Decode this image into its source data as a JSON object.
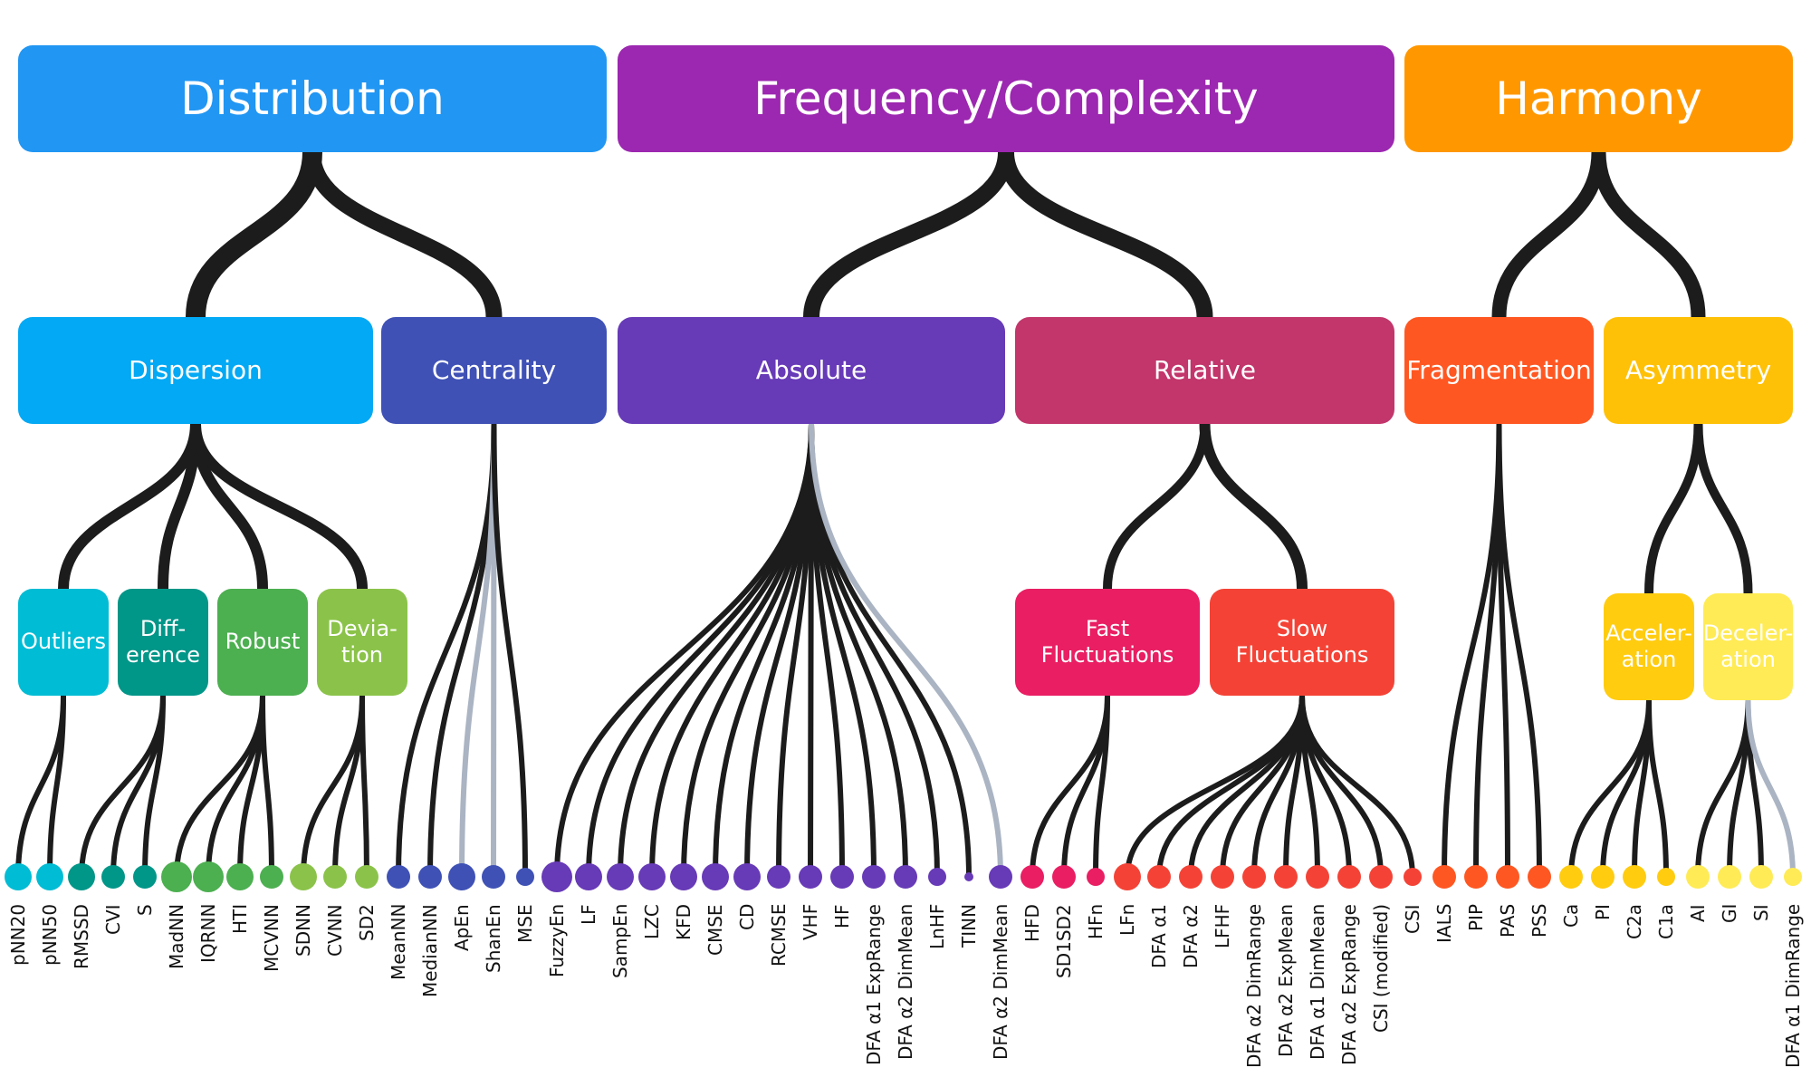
{
  "diagram": {
    "categories": [
      {
        "id": "distribution",
        "label": "Distribution",
        "color": "#2196F3"
      },
      {
        "id": "frequency",
        "label": "Frequency/Complexity",
        "color": "#9C27B0"
      },
      {
        "id": "harmony",
        "label": "Harmony",
        "color": "#FF9800"
      }
    ],
    "subcategories": [
      {
        "id": "dispersion",
        "label": "Dispersion",
        "color": "#03A9F4"
      },
      {
        "id": "centrality",
        "label": "Centrality",
        "color": "#3F51B5"
      },
      {
        "id": "absolute",
        "label": "Absolute",
        "color": "#673AB7"
      },
      {
        "id": "relative",
        "label": "Relative",
        "color": "#C2366B"
      },
      {
        "id": "fragmentation",
        "label": "Fragmentation",
        "color": "#FF5722"
      },
      {
        "id": "asymmetry",
        "label": "Asymmetry",
        "color": "#FFC107"
      }
    ],
    "groups": [
      {
        "id": "outliers",
        "label": "Outliers",
        "color": "#00BCD4"
      },
      {
        "id": "difference",
        "label": "Diff-\nerence",
        "color": "#009688"
      },
      {
        "id": "robust",
        "label": "Robust",
        "color": "#4CAF50"
      },
      {
        "id": "deviation",
        "label": "Devia-\ntion",
        "color": "#8BC34A"
      },
      {
        "id": "fast",
        "label": "Fast\nFluctuations",
        "color": "#E91E63"
      },
      {
        "id": "slow",
        "label": "Slow\nFluctuations",
        "color": "#F44336"
      },
      {
        "id": "acceleration",
        "label": "Acceler-\nation",
        "color": "#FFCC10"
      },
      {
        "id": "deceleration",
        "label": "Deceler-\nation",
        "color": "#FFEB55"
      }
    ],
    "indices": [
      {
        "label": "pNN20",
        "color": "#00BCD4",
        "size": 3
      },
      {
        "label": "pNN50",
        "color": "#00BCD4",
        "size": 3
      },
      {
        "label": "RMSSD",
        "color": "#009688",
        "size": 3
      },
      {
        "label": "CVI",
        "color": "#009688",
        "size": 2
      },
      {
        "label": "S",
        "color": "#009688",
        "size": 2
      },
      {
        "label": "MadNN",
        "color": "#4CAF50",
        "size": 4
      },
      {
        "label": "IQRNN",
        "color": "#4CAF50",
        "size": 4
      },
      {
        "label": "HTI",
        "color": "#4CAF50",
        "size": 3
      },
      {
        "label": "MCVNN",
        "color": "#4CAF50",
        "size": 2
      },
      {
        "label": "SDNN",
        "color": "#8BC34A",
        "size": 3
      },
      {
        "label": "CVNN",
        "color": "#8BC34A",
        "size": 2
      },
      {
        "label": "SD2",
        "color": "#8BC34A",
        "size": 2
      },
      {
        "label": "MeanNN",
        "color": "#3F51B5",
        "size": 2
      },
      {
        "label": "MedianNN",
        "color": "#3F51B5",
        "size": 2
      },
      {
        "label": "ApEn",
        "color": "#3F51B5",
        "size": 3
      },
      {
        "label": "ShanEn",
        "color": "#3F51B5",
        "size": 2
      },
      {
        "label": "MSE",
        "color": "#3F51B5",
        "size": 1
      },
      {
        "label": "FuzzyEn",
        "color": "#673AB7",
        "size": 4
      },
      {
        "label": "LF",
        "color": "#673AB7",
        "size": 3
      },
      {
        "label": "SampEn",
        "color": "#673AB7",
        "size": 3
      },
      {
        "label": "LZC",
        "color": "#673AB7",
        "size": 3
      },
      {
        "label": "KFD",
        "color": "#673AB7",
        "size": 3
      },
      {
        "label": "CMSE",
        "color": "#673AB7",
        "size": 3
      },
      {
        "label": "CD",
        "color": "#673AB7",
        "size": 3
      },
      {
        "label": "RCMSE",
        "color": "#673AB7",
        "size": 2
      },
      {
        "label": "VHF",
        "color": "#673AB7",
        "size": 2
      },
      {
        "label": "HF",
        "color": "#673AB7",
        "size": 2
      },
      {
        "label": "DFA α1 ExpRange",
        "color": "#673AB7",
        "size": 2
      },
      {
        "label": "DFA α2 DimMean",
        "color": "#673AB7",
        "size": 2
      },
      {
        "label": "LnHF",
        "color": "#673AB7",
        "size": 1
      },
      {
        "label": "TINN",
        "color": "#673AB7",
        "size": 0
      },
      {
        "label": "DFA α2 DimMean",
        "color": "#673AB7",
        "size": 2
      },
      {
        "label": "HFD",
        "color": "#E91E63",
        "size": 2
      },
      {
        "label": "SD1SD2",
        "color": "#E91E63",
        "size": 2
      },
      {
        "label": "HFn",
        "color": "#E91E63",
        "size": 1
      },
      {
        "label": "LFn",
        "color": "#F44336",
        "size": 3
      },
      {
        "label": "DFA α1",
        "color": "#F44336",
        "size": 2
      },
      {
        "label": "DFA α2",
        "color": "#F44336",
        "size": 2
      },
      {
        "label": "LFHF",
        "color": "#F44336",
        "size": 2
      },
      {
        "label": "DFA α2 DimRange",
        "color": "#F44336",
        "size": 2
      },
      {
        "label": "DFA α2 ExpMean",
        "color": "#F44336",
        "size": 2
      },
      {
        "label": "DFA α1 DimMean",
        "color": "#F44336",
        "size": 2
      },
      {
        "label": "DFA α2 ExpRange",
        "color": "#F44336",
        "size": 2
      },
      {
        "label": "CSI (modified)",
        "color": "#F44336",
        "size": 2
      },
      {
        "label": "CSI",
        "color": "#F44336",
        "size": 1
      },
      {
        "label": "IALS",
        "color": "#FF5722",
        "size": 2
      },
      {
        "label": "PIP",
        "color": "#FF5722",
        "size": 2
      },
      {
        "label": "PAS",
        "color": "#FF5722",
        "size": 2
      },
      {
        "label": "PSS",
        "color": "#FF5722",
        "size": 2
      },
      {
        "label": "Ca",
        "color": "#FFCC10",
        "size": 2
      },
      {
        "label": "PI",
        "color": "#FFCC10",
        "size": 2
      },
      {
        "label": "C2a",
        "color": "#FFCC10",
        "size": 2
      },
      {
        "label": "C1a",
        "color": "#FFCC10",
        "size": 1
      },
      {
        "label": "AI",
        "color": "#FFEB55",
        "size": 2
      },
      {
        "label": "GI",
        "color": "#FFEB55",
        "size": 2
      },
      {
        "label": "SI",
        "color": "#FFEB55",
        "size": 2
      },
      {
        "label": "DFA α1 DimRange",
        "color": "#FFEB55",
        "size": 1
      }
    ],
    "edge_colors": {
      "main": "#1c1c1c",
      "secondary": "#aab4c3"
    }
  }
}
